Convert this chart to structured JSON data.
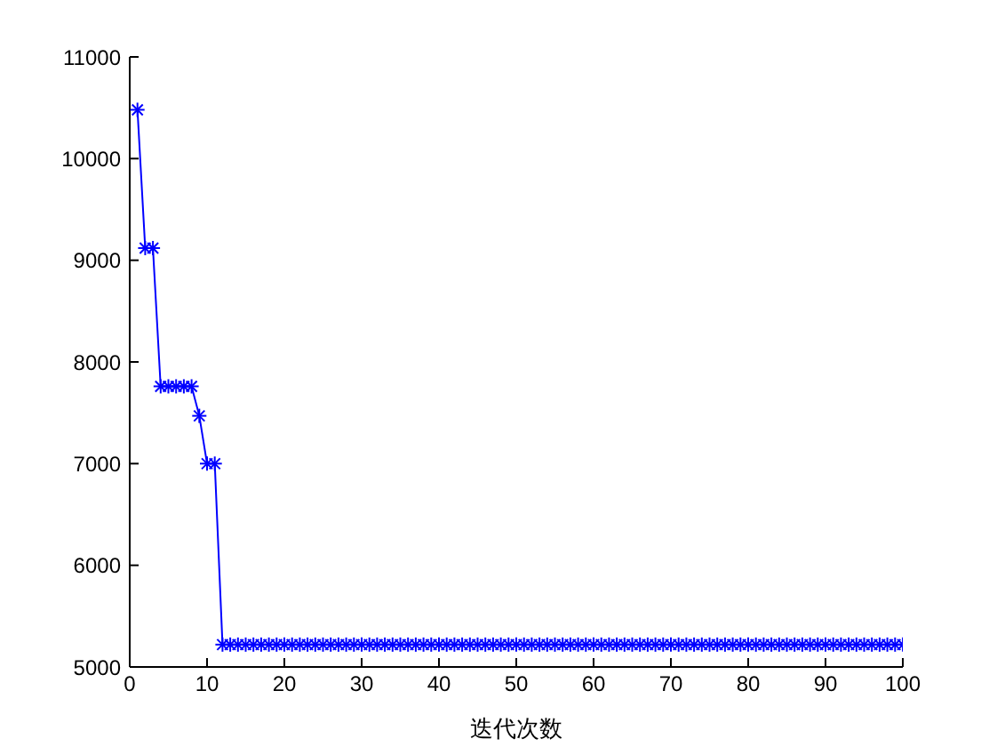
{
  "chart_data": {
    "type": "line",
    "xlabel": "迭代次数",
    "x": [
      1,
      2,
      3,
      4,
      5,
      6,
      7,
      8,
      9,
      10,
      11,
      12,
      13,
      14,
      15,
      16,
      17,
      18,
      19,
      20,
      21,
      22,
      23,
      24,
      25,
      26,
      27,
      28,
      29,
      30,
      31,
      32,
      33,
      34,
      35,
      36,
      37,
      38,
      39,
      40,
      41,
      42,
      43,
      44,
      45,
      46,
      47,
      48,
      49,
      50,
      51,
      52,
      53,
      54,
      55,
      56,
      57,
      58,
      59,
      60,
      61,
      62,
      63,
      64,
      65,
      66,
      67,
      68,
      69,
      70,
      71,
      72,
      73,
      74,
      75,
      76,
      77,
      78,
      79,
      80,
      81,
      82,
      83,
      84,
      85,
      86,
      87,
      88,
      89,
      90,
      91,
      92,
      93,
      94,
      95,
      96,
      97,
      98,
      99,
      100
    ],
    "series": [
      {
        "color": "#0000ff",
        "values": [
          10480,
          9120,
          9120,
          7760,
          7760,
          7760,
          7760,
          7760,
          7470,
          7000,
          7000,
          5220,
          5220,
          5220,
          5220,
          5220,
          5220,
          5220,
          5220,
          5220,
          5220,
          5220,
          5220,
          5220,
          5220,
          5220,
          5220,
          5220,
          5220,
          5220,
          5220,
          5220,
          5220,
          5220,
          5220,
          5220,
          5220,
          5220,
          5220,
          5220,
          5220,
          5220,
          5220,
          5220,
          5220,
          5220,
          5220,
          5220,
          5220,
          5220,
          5220,
          5220,
          5220,
          5220,
          5220,
          5220,
          5220,
          5220,
          5220,
          5220,
          5220,
          5220,
          5220,
          5220,
          5220,
          5220,
          5220,
          5220,
          5220,
          5220,
          5220,
          5220,
          5220,
          5220,
          5220,
          5220,
          5220,
          5220,
          5220,
          5220,
          5220,
          5220,
          5220,
          5220,
          5220,
          5220,
          5220,
          5220,
          5220,
          5220,
          5220,
          5220,
          5220,
          5220,
          5220,
          5220,
          5220,
          5220,
          5220,
          5220
        ]
      }
    ],
    "xlim": [
      0,
      100
    ],
    "xticks": [
      0,
      10,
      20,
      30,
      40,
      50,
      60,
      70,
      80,
      90,
      100
    ],
    "ylim": [
      5000,
      11000
    ],
    "yticks": [
      5000,
      6000,
      7000,
      8000,
      9000,
      10000,
      11000
    ],
    "grid": false,
    "legend": false,
    "marker": "cross",
    "line_style": "solid"
  }
}
